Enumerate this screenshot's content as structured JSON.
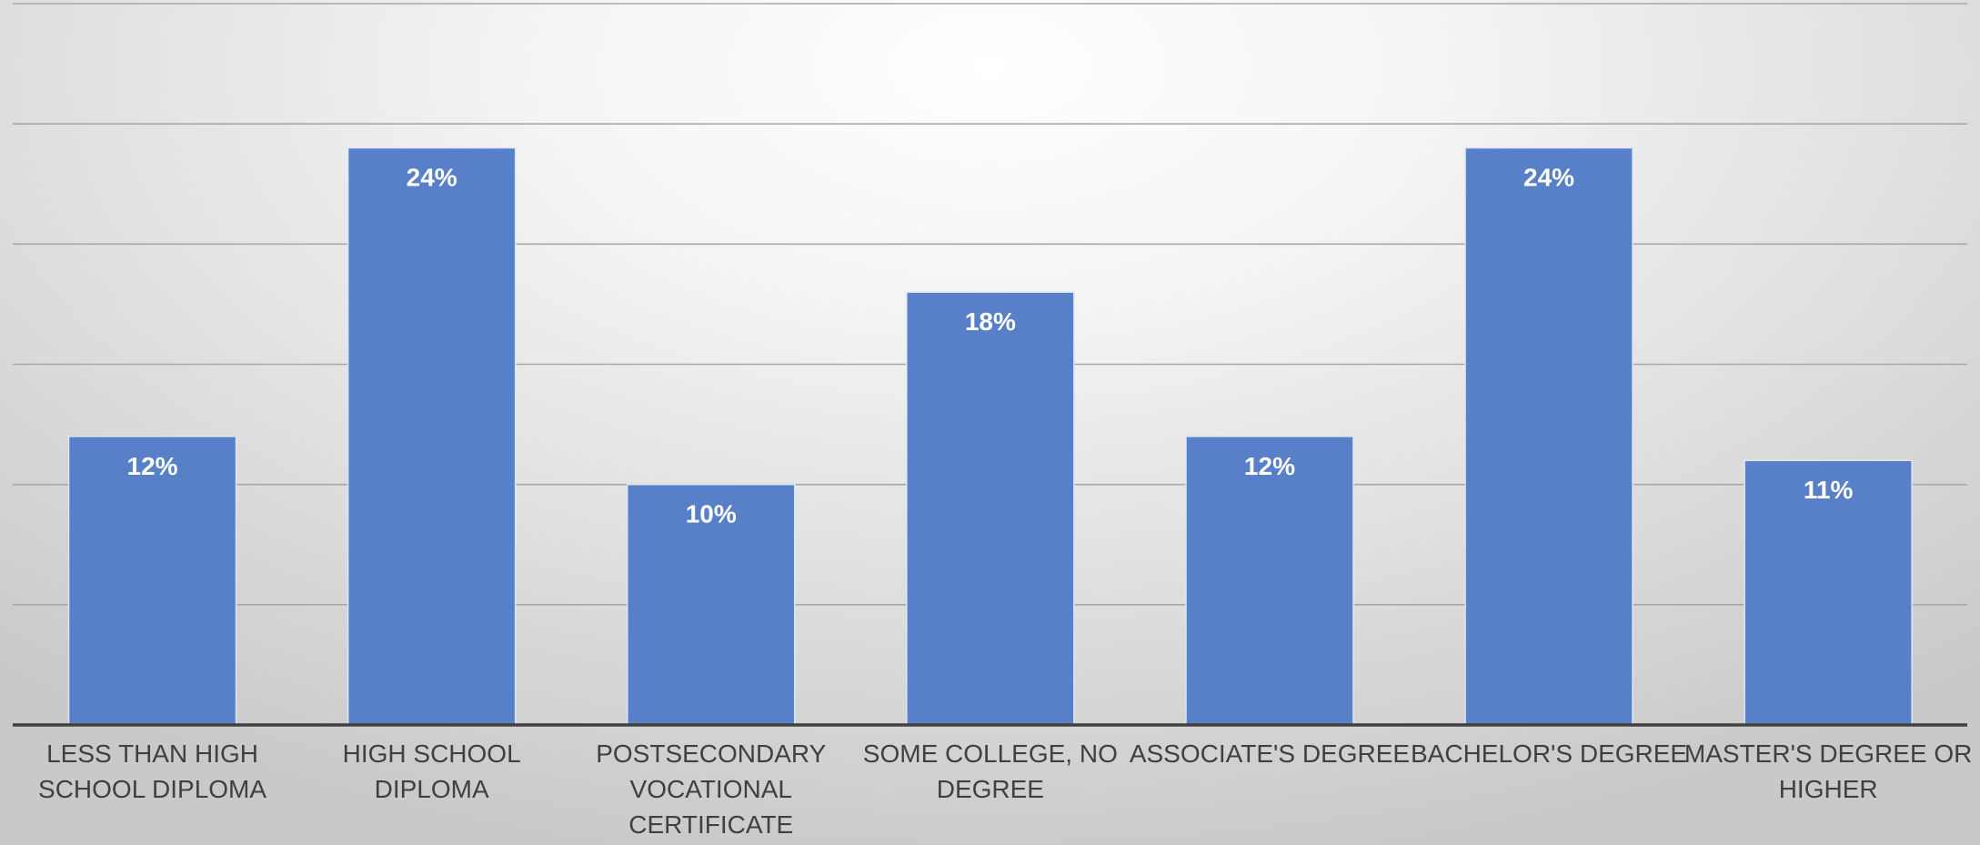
{
  "colors": {
    "bar": "#5880c8",
    "data_label": "#ffffff",
    "category_label": "#404040",
    "gridline": "#a8a8a8",
    "axis": "#404040"
  },
  "chart_data": {
    "type": "bar",
    "title": "",
    "xlabel": "",
    "ylabel": "",
    "categories": [
      [
        "LESS THAN HIGH",
        "SCHOOL DIPLOMA"
      ],
      [
        "HIGH SCHOOL",
        "DIPLOMA"
      ],
      [
        "POSTSECONDARY",
        "VOCATIONAL",
        "CERTIFICATE"
      ],
      [
        "SOME COLLEGE, NO",
        "DEGREE"
      ],
      [
        "ASSOCIATE'S DEGREE"
      ],
      [
        "BACHELOR'S DEGREE"
      ],
      [
        "MASTER'S DEGREE OR",
        "HIGHER"
      ]
    ],
    "values": [
      12,
      24,
      10,
      18,
      12,
      24,
      11
    ],
    "data_labels": [
      "12%",
      "24%",
      "10%",
      "18%",
      "12%",
      "24%",
      "11%"
    ],
    "ylim": [
      0,
      30
    ],
    "grid": true,
    "legend": "none"
  }
}
